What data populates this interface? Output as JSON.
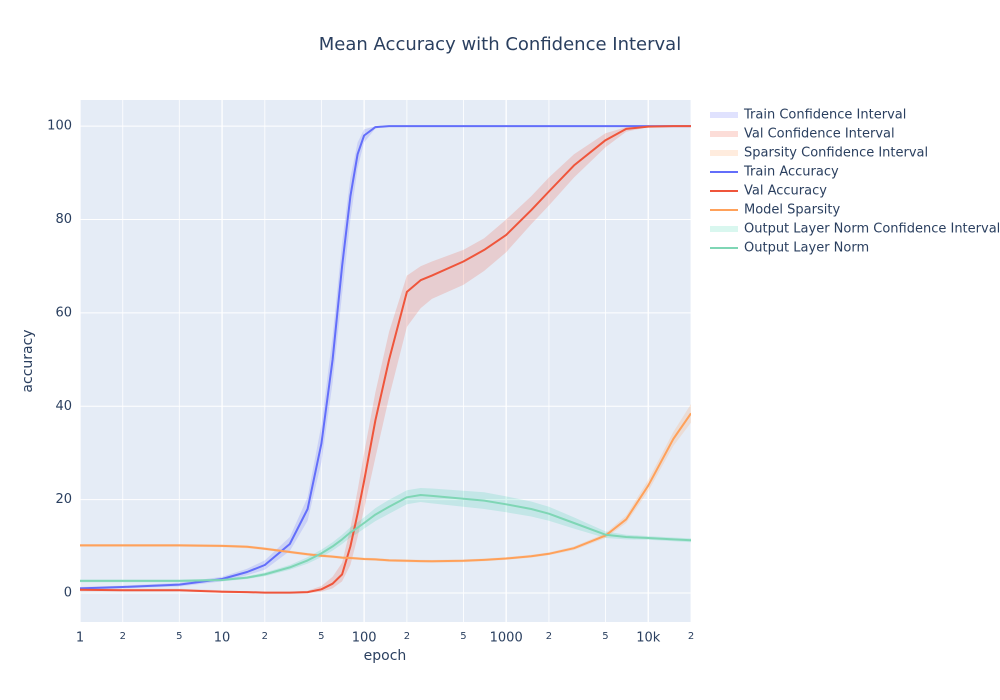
{
  "chart_data": {
    "type": "line",
    "title": "Mean Accuracy with Confidence Interval",
    "xlabel": "epoch",
    "ylabel": "accuracy",
    "log_x": true,
    "grid": true,
    "legend": "right",
    "xlim": [
      1,
      20000
    ],
    "ylim": [
      -6.2,
      105.6
    ],
    "xticks": [
      1,
      2,
      5,
      10,
      {
        "value": 20,
        "label": "2"
      },
      {
        "value": 50,
        "label": "5"
      },
      100,
      {
        "value": 200,
        "label": "2"
      },
      {
        "value": 500,
        "label": "5"
      },
      1000,
      {
        "value": 2000,
        "label": "2"
      },
      {
        "value": 5000,
        "label": "5"
      },
      {
        "value": 10000,
        "label": "10k"
      },
      {
        "value": 20000,
        "label": "2"
      }
    ],
    "yticks": [
      0,
      20,
      40,
      60,
      80,
      100
    ],
    "x": [
      1,
      2,
      5,
      10,
      15,
      20,
      30,
      40,
      50,
      60,
      70,
      80,
      90,
      100,
      120,
      150,
      200,
      250,
      300,
      500,
      700,
      1000,
      1500,
      2000,
      3000,
      5000,
      7000,
      10000,
      15000,
      20000
    ],
    "series": [
      {
        "name": "Train Confidence Interval",
        "kind": "band",
        "color": "rgba(99,110,250,0.2)",
        "lower": [
          0.7,
          1,
          1.4,
          2.5,
          3.8,
          5,
          9,
          15.5,
          28,
          45,
          64,
          80,
          91,
          96.5,
          99.5,
          100,
          100,
          100,
          100,
          100,
          100,
          100,
          100,
          100,
          100,
          100,
          100,
          100,
          100,
          100
        ],
        "upper": [
          1.3,
          1.6,
          2.2,
          3.5,
          5.2,
          7,
          12,
          20.5,
          36,
          55,
          75,
          89,
          96.5,
          99.3,
          100,
          100,
          100,
          100,
          100,
          100,
          100,
          100,
          100,
          100,
          100,
          100,
          100,
          100,
          100,
          100
        ]
      },
      {
        "name": "Val Confidence Interval",
        "kind": "band",
        "color": "rgba(239,85,59,0.2)",
        "lower": [
          0.4,
          0.4,
          0.4,
          0.1,
          0,
          0,
          0,
          0,
          0.3,
          1,
          2.5,
          6,
          12,
          18,
          29,
          42,
          57,
          61,
          63,
          66,
          69,
          73,
          79,
          83,
          89,
          95.5,
          98.8,
          99.8,
          100,
          100
        ],
        "upper": [
          1,
          0.9,
          0.9,
          0.6,
          0.4,
          0.3,
          0.3,
          0.5,
          1.5,
          3.5,
          6.5,
          14,
          22,
          30,
          43,
          56,
          68,
          70,
          71,
          73.5,
          76,
          80,
          85,
          89,
          94,
          98.5,
          99.8,
          100,
          100,
          100
        ]
      },
      {
        "name": "Sparsity Confidence Interval",
        "kind": "band",
        "color": "rgba(255,161,90,0.2)",
        "lower": [
          9.9,
          9.9,
          9.9,
          9.8,
          9.6,
          9.2,
          8.5,
          8.0,
          7.7,
          7.5,
          7.3,
          7.2,
          7.1,
          7.0,
          6.9,
          6.7,
          6.6,
          6.55,
          6.5,
          6.6,
          6.8,
          7.1,
          7.6,
          8.1,
          9.2,
          11.8,
          15,
          21.8,
          31.5,
          36.5
        ],
        "upper": [
          10.5,
          10.5,
          10.5,
          10.4,
          10.2,
          9.8,
          9.1,
          8.6,
          8.3,
          8.1,
          7.9,
          7.8,
          7.7,
          7.6,
          7.5,
          7.3,
          7.2,
          7.15,
          7.1,
          7.2,
          7.4,
          7.7,
          8.2,
          8.7,
          10,
          12.8,
          16.6,
          24.2,
          34.5,
          40.5
        ]
      },
      {
        "name": "Train Accuracy",
        "kind": "line",
        "color": "#636efa",
        "values": [
          1,
          1.3,
          1.8,
          3,
          4.5,
          6,
          10.5,
          18,
          32,
          50,
          70,
          85,
          94,
          98,
          99.8,
          100,
          100,
          100,
          100,
          100,
          100,
          100,
          100,
          100,
          100,
          100,
          100,
          100,
          100,
          100
        ]
      },
      {
        "name": "Val Accuracy",
        "kind": "line",
        "color": "#EF553B",
        "values": [
          0.7,
          0.6,
          0.6,
          0.3,
          0.2,
          0.1,
          0.1,
          0.2,
          0.8,
          2,
          4,
          10,
          17,
          24,
          37,
          50,
          64.5,
          67,
          68,
          71,
          73.5,
          76.7,
          82,
          86,
          91.6,
          97,
          99.4,
          99.9,
          100,
          100
        ]
      },
      {
        "name": "Model Sparsity",
        "kind": "line",
        "color": "#FFA15A",
        "values": [
          10.2,
          10.2,
          10.2,
          10.1,
          9.9,
          9.5,
          8.8,
          8.3,
          8.0,
          7.8,
          7.6,
          7.5,
          7.4,
          7.3,
          7.2,
          7.0,
          6.9,
          6.85,
          6.8,
          6.9,
          7.1,
          7.4,
          7.9,
          8.4,
          9.6,
          12.3,
          15.8,
          23,
          33,
          38.5
        ]
      },
      {
        "name": "Output Layer Norm Confidence Interval",
        "kind": "band",
        "color": "rgba(0,204,150,0.15)",
        "lower": [
          2.3,
          2.3,
          2.3,
          2.5,
          3,
          3.6,
          5,
          6.3,
          7.7,
          9.1,
          10.5,
          11.9,
          12.8,
          13.8,
          15.4,
          17,
          19,
          19.5,
          19.2,
          18.5,
          18,
          17.3,
          16.4,
          15.5,
          13.8,
          11.8,
          11.5,
          11.4,
          11.1,
          10.9
        ],
        "upper": [
          2.9,
          2.9,
          2.9,
          3.1,
          3.6,
          4.4,
          6,
          7.7,
          9.3,
          10.9,
          12.5,
          14.1,
          15.2,
          16.2,
          18.2,
          20,
          22,
          22.5,
          22.4,
          21.9,
          21.6,
          20.7,
          19.6,
          18.5,
          16.2,
          13.2,
          12.5,
          12.2,
          11.9,
          11.7
        ]
      },
      {
        "name": "Output Layer Norm",
        "kind": "line",
        "color": "#7fd6b5",
        "values": [
          2.6,
          2.6,
          2.6,
          2.8,
          3.3,
          4,
          5.5,
          7,
          8.5,
          10,
          11.5,
          13,
          14,
          15,
          16.8,
          18.5,
          20.5,
          21,
          20.8,
          20.2,
          19.8,
          19,
          18,
          17,
          15,
          12.5,
          12,
          11.8,
          11.5,
          11.3
        ]
      }
    ]
  }
}
